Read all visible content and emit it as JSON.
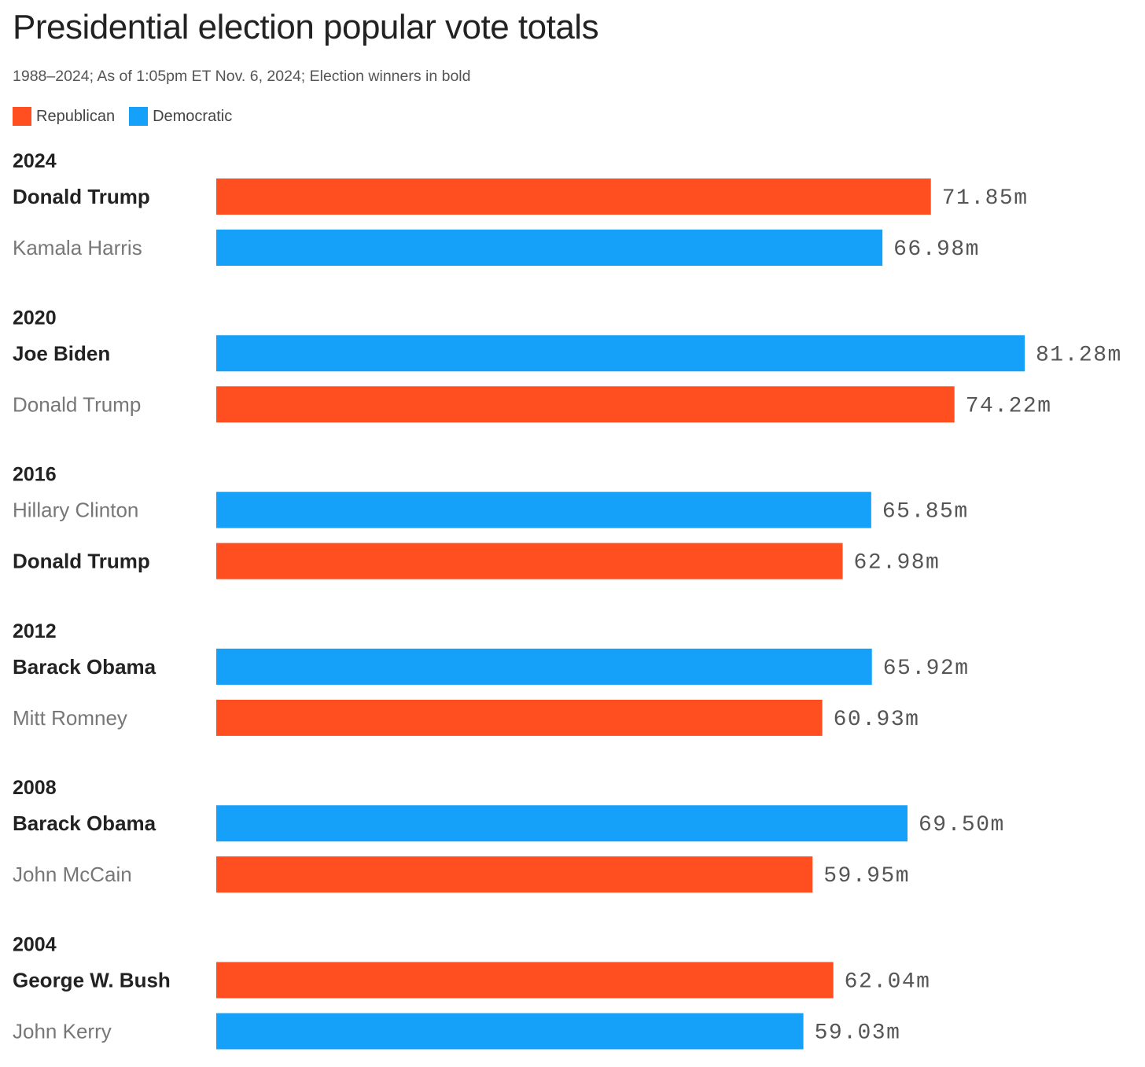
{
  "header": {
    "title": "Presidential election popular vote totals",
    "subtitle": "1988–2024; As of 1:05pm ET Nov. 6, 2024; Election winners in bold"
  },
  "legend": {
    "republican_label": "Republican",
    "democratic_label": "Democratic"
  },
  "colors": {
    "republican": "#ff4f21",
    "democratic": "#15a0fa"
  },
  "chart_data": {
    "type": "bar",
    "orientation": "horizontal",
    "title": "Presidential election popular vote totals",
    "subtitle": "1988–2024; As of 1:05pm ET Nov. 6, 2024; Election winners in bold",
    "unit": "m",
    "xlim": [
      0,
      81.28
    ],
    "series_legend": [
      "Republican",
      "Democratic"
    ],
    "groups": [
      {
        "year": "2024",
        "candidates": [
          {
            "name": "Donald Trump",
            "party": "republican",
            "value": 71.85,
            "label": "71.85m",
            "winner": true
          },
          {
            "name": "Kamala Harris",
            "party": "democratic",
            "value": 66.98,
            "label": "66.98m",
            "winner": false
          }
        ]
      },
      {
        "year": "2020",
        "candidates": [
          {
            "name": "Joe Biden",
            "party": "democratic",
            "value": 81.28,
            "label": "81.28m",
            "winner": true
          },
          {
            "name": "Donald Trump",
            "party": "republican",
            "value": 74.22,
            "label": "74.22m",
            "winner": false
          }
        ]
      },
      {
        "year": "2016",
        "candidates": [
          {
            "name": "Hillary Clinton",
            "party": "democratic",
            "value": 65.85,
            "label": "65.85m",
            "winner": false
          },
          {
            "name": "Donald Trump",
            "party": "republican",
            "value": 62.98,
            "label": "62.98m",
            "winner": true
          }
        ]
      },
      {
        "year": "2012",
        "candidates": [
          {
            "name": "Barack Obama",
            "party": "democratic",
            "value": 65.92,
            "label": "65.92m",
            "winner": true
          },
          {
            "name": "Mitt Romney",
            "party": "republican",
            "value": 60.93,
            "label": "60.93m",
            "winner": false
          }
        ]
      },
      {
        "year": "2008",
        "candidates": [
          {
            "name": "Barack Obama",
            "party": "democratic",
            "value": 69.5,
            "label": "69.50m",
            "winner": true
          },
          {
            "name": "John McCain",
            "party": "republican",
            "value": 59.95,
            "label": "59.95m",
            "winner": false
          }
        ]
      },
      {
        "year": "2004",
        "candidates": [
          {
            "name": "George W. Bush",
            "party": "republican",
            "value": 62.04,
            "label": "62.04m",
            "winner": true
          },
          {
            "name": "John Kerry",
            "party": "democratic",
            "value": 59.03,
            "label": "59.03m",
            "winner": false
          }
        ]
      }
    ]
  }
}
